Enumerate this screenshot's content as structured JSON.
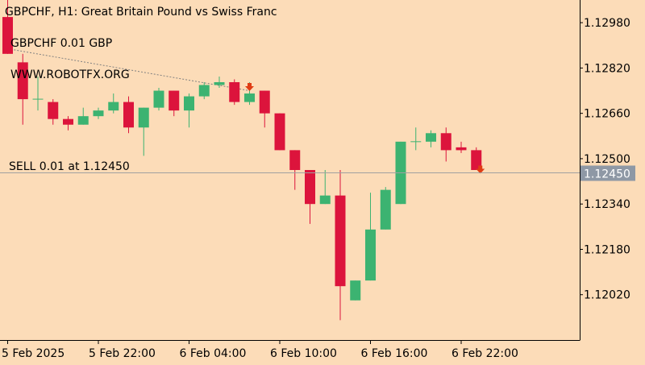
{
  "header": {
    "title": "GBPCHF, H1:  Great Britain Pound vs Swiss Franc",
    "lot_label": "GBPCHF 0.01 GBP",
    "website": "WWW.ROBOTFX.ORG",
    "order_label": "SELL 0.01 at 1.12450"
  },
  "price_line": {
    "value": 1.1245,
    "label": "1.12450"
  },
  "colors": {
    "background": "#fcdcb8",
    "bull": "#3cb371",
    "bear": "#dc143c",
    "axis": "#a0a0a0",
    "text": "#000000",
    "price_tag_bg": "#8e98a5",
    "sell_arrow": "#e03c14",
    "trend_line": "#808080"
  },
  "icons": {
    "sell_arrow": "arrow-down-icon"
  },
  "chart_data": {
    "type": "candlestick",
    "symbol": "GBPCHF",
    "timeframe": "H1",
    "ylim": [
      1.1186,
      1.1306
    ],
    "y_ticks": [
      1.1298,
      1.1282,
      1.1266,
      1.125,
      1.1234,
      1.1218,
      1.1202
    ],
    "y_tick_labels": [
      "1.12980",
      "1.12820",
      "1.12660",
      "1.12500",
      "1.12340",
      "1.12180",
      "1.12020"
    ],
    "x_tick_labels": [
      "5 Feb 2025",
      "5 Feb 22:00",
      "6 Feb 04:00",
      "6 Feb 10:00",
      "6 Feb 16:00",
      "6 Feb 22:00"
    ],
    "x_tick_bar_index": [
      0,
      6,
      12,
      18,
      24,
      30
    ],
    "candles": [
      {
        "o": 1.13,
        "h": 1.1306,
        "l": 1.1287,
        "c": 1.1287
      },
      {
        "o": 1.1284,
        "h": 1.1287,
        "l": 1.1262,
        "c": 1.1271
      },
      {
        "o": 1.1271,
        "h": 1.1279,
        "l": 1.1267,
        "c": 1.1271
      },
      {
        "o": 1.127,
        "h": 1.1271,
        "l": 1.1262,
        "c": 1.1264
      },
      {
        "o": 1.1264,
        "h": 1.1265,
        "l": 1.126,
        "c": 1.1262
      },
      {
        "o": 1.1262,
        "h": 1.1268,
        "l": 1.1262,
        "c": 1.1265
      },
      {
        "o": 1.1265,
        "h": 1.1268,
        "l": 1.1264,
        "c": 1.1267
      },
      {
        "o": 1.1267,
        "h": 1.1273,
        "l": 1.1266,
        "c": 1.127
      },
      {
        "o": 1.127,
        "h": 1.1272,
        "l": 1.1259,
        "c": 1.1261
      },
      {
        "o": 1.1261,
        "h": 1.1268,
        "l": 1.1251,
        "c": 1.1268
      },
      {
        "o": 1.1268,
        "h": 1.1275,
        "l": 1.1267,
        "c": 1.1274
      },
      {
        "o": 1.1274,
        "h": 1.1274,
        "l": 1.1265,
        "c": 1.1267
      },
      {
        "o": 1.1267,
        "h": 1.1273,
        "l": 1.1261,
        "c": 1.1272
      },
      {
        "o": 1.1272,
        "h": 1.1277,
        "l": 1.1271,
        "c": 1.1276
      },
      {
        "o": 1.1276,
        "h": 1.1279,
        "l": 1.1275,
        "c": 1.1277
      },
      {
        "o": 1.1277,
        "h": 1.1278,
        "l": 1.1269,
        "c": 1.127
      },
      {
        "o": 1.127,
        "h": 1.1277,
        "l": 1.1269,
        "c": 1.1273
      },
      {
        "o": 1.1274,
        "h": 1.1274,
        "l": 1.1261,
        "c": 1.1266
      },
      {
        "o": 1.1266,
        "h": 1.1266,
        "l": 1.1253,
        "c": 1.1253
      },
      {
        "o": 1.1253,
        "h": 1.1253,
        "l": 1.1239,
        "c": 1.1246
      },
      {
        "o": 1.1246,
        "h": 1.1246,
        "l": 1.1227,
        "c": 1.1234
      },
      {
        "o": 1.1234,
        "h": 1.1246,
        "l": 1.1234,
        "c": 1.1237
      },
      {
        "o": 1.1237,
        "h": 1.1246,
        "l": 1.1193,
        "c": 1.1205
      },
      {
        "o": 1.12,
        "h": 1.1207,
        "l": 1.12,
        "c": 1.1207
      },
      {
        "o": 1.1207,
        "h": 1.1238,
        "l": 1.1207,
        "c": 1.1225
      },
      {
        "o": 1.1225,
        "h": 1.124,
        "l": 1.1225,
        "c": 1.1239
      },
      {
        "o": 1.1234,
        "h": 1.1256,
        "l": 1.1234,
        "c": 1.1256
      },
      {
        "o": 1.1256,
        "h": 1.1261,
        "l": 1.1253,
        "c": 1.1256
      },
      {
        "o": 1.1256,
        "h": 1.126,
        "l": 1.1254,
        "c": 1.1259
      },
      {
        "o": 1.1259,
        "h": 1.1261,
        "l": 1.1249,
        "c": 1.1253
      },
      {
        "o": 1.1254,
        "h": 1.1256,
        "l": 1.1252,
        "c": 1.1253
      },
      {
        "o": 1.1253,
        "h": 1.1254,
        "l": 1.1246,
        "c": 1.1246
      }
    ],
    "sell_signal_bars": [
      16,
      31
    ],
    "trend_line": {
      "from_bar": 0,
      "from_price": 1.1289,
      "to_bar": 16,
      "to_price": 1.1274
    }
  }
}
